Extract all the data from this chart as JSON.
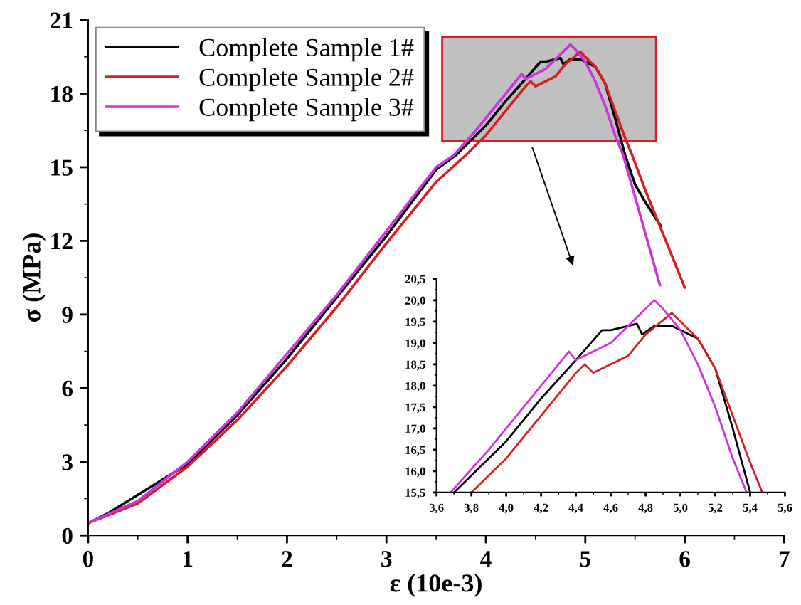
{
  "chart_data": [
    {
      "type": "line",
      "xlabel": "ε (10e-3)",
      "ylabel": "σ (MPa)",
      "xlim": [
        0,
        7
      ],
      "xticks": [
        0,
        1,
        2,
        3,
        4,
        5,
        6,
        7
      ],
      "ylim": [
        0,
        21
      ],
      "yticks": [
        0,
        3,
        6,
        9,
        12,
        15,
        18,
        21
      ],
      "grid": false,
      "legend": "top left",
      "marker": "none",
      "line_style": "solid",
      "series": [
        {
          "name": "Complete Sample 1#",
          "color": "#000000",
          "x": [
            0,
            0.2,
            1,
            1.5,
            2,
            2.5,
            3,
            3.5,
            3.7,
            3.8,
            4.0,
            4.2,
            4.4,
            4.55,
            4.6,
            4.75,
            4.78,
            4.85,
            4.95,
            5.05,
            5.1,
            5.2,
            5.3,
            5.4,
            5.5,
            5.6,
            5.76
          ],
          "values": [
            0.5,
            0.9,
            2.9,
            4.9,
            7.2,
            9.7,
            12.2,
            14.9,
            15.5,
            15.9,
            16.7,
            17.7,
            18.6,
            19.3,
            19.3,
            19.45,
            19.2,
            19.4,
            19.4,
            19.2,
            19.1,
            18.4,
            17.0,
            15.5,
            14.3,
            13.6,
            12.6
          ]
        },
        {
          "name": "Complete Sample 2#",
          "color": "#d42020",
          "x": [
            0,
            0.5,
            1,
            1.5,
            2,
            2.5,
            3,
            3.5,
            3.8,
            4.0,
            4.2,
            4.4,
            4.45,
            4.5,
            4.6,
            4.7,
            4.8,
            4.95,
            5.0,
            5.1,
            5.2,
            5.3,
            5.4,
            5.47,
            5.6,
            5.8,
            6.0
          ],
          "values": [
            0.5,
            1.3,
            2.8,
            4.7,
            6.9,
            9.3,
            11.9,
            14.4,
            15.5,
            16.3,
            17.3,
            18.3,
            18.5,
            18.3,
            18.5,
            18.7,
            19.2,
            19.7,
            19.5,
            19.1,
            18.4,
            17.3,
            16.2,
            15.5,
            14.1,
            12.1,
            10.1
          ]
        },
        {
          "name": "Complete Sample 3#",
          "color": "#cc33dd",
          "x": [
            0,
            0.5,
            1,
            1.5,
            2,
            2.5,
            3,
            3.5,
            3.68,
            3.9,
            4.1,
            4.3,
            4.36,
            4.4,
            4.6,
            4.8,
            4.85,
            4.9,
            5.0,
            5.1,
            5.2,
            5.3,
            5.38,
            5.5,
            5.75
          ],
          "values": [
            0.5,
            1.4,
            3.0,
            5.0,
            7.4,
            9.8,
            12.4,
            15.0,
            15.5,
            16.5,
            17.5,
            18.5,
            18.8,
            18.6,
            19.0,
            19.8,
            20.0,
            19.8,
            19.3,
            18.5,
            17.5,
            16.3,
            15.5,
            13.8,
            10.2
          ]
        }
      ]
    },
    {
      "type": "line",
      "xlim": [
        3.6,
        5.6
      ],
      "xticks": [
        {
          "value": 3.6,
          "label": "3,6"
        },
        {
          "value": 3.8,
          "label": "3,8"
        },
        {
          "value": 4.0,
          "label": "4,0"
        },
        {
          "value": 4.2,
          "label": "4,2"
        },
        {
          "value": 4.4,
          "label": "4,4"
        },
        {
          "value": 4.6,
          "label": "4,6"
        },
        {
          "value": 4.8,
          "label": "4,8"
        },
        {
          "value": 5.0,
          "label": "5,0"
        },
        {
          "value": 5.2,
          "label": "5,2"
        },
        {
          "value": 5.4,
          "label": "5,4"
        },
        {
          "value": 5.6,
          "label": "5,6"
        }
      ],
      "ylim": [
        15.5,
        20.5
      ],
      "yticks": [
        {
          "value": 15.5,
          "label": "15,5"
        },
        {
          "value": 16.0,
          "label": "16,0"
        },
        {
          "value": 16.5,
          "label": "16,5"
        },
        {
          "value": 17.0,
          "label": "17,0"
        },
        {
          "value": 17.5,
          "label": "17,5"
        },
        {
          "value": 18.0,
          "label": "18,0"
        },
        {
          "value": 18.5,
          "label": "18,5"
        },
        {
          "value": 19.0,
          "label": "19,0"
        },
        {
          "value": 19.5,
          "label": "19,5"
        },
        {
          "value": 20.0,
          "label": "20,0"
        },
        {
          "value": 20.5,
          "label": "20,5"
        }
      ],
      "grid": false,
      "marker": "none",
      "line_style": "solid",
      "series": [
        {
          "color": "#000000",
          "x": [
            3.7,
            3.8,
            4.0,
            4.2,
            4.4,
            4.55,
            4.6,
            4.75,
            4.78,
            4.85,
            4.95,
            5.05,
            5.1,
            5.2,
            5.3,
            5.4
          ],
          "values": [
            15.5,
            15.9,
            16.7,
            17.7,
            18.6,
            19.3,
            19.3,
            19.45,
            19.2,
            19.4,
            19.4,
            19.2,
            19.1,
            18.4,
            17.0,
            15.5
          ]
        },
        {
          "color": "#d42020",
          "x": [
            3.8,
            4.0,
            4.2,
            4.4,
            4.45,
            4.5,
            4.6,
            4.7,
            4.8,
            4.95,
            5.0,
            5.1,
            5.2,
            5.3,
            5.4,
            5.47
          ],
          "values": [
            15.5,
            16.3,
            17.3,
            18.3,
            18.5,
            18.3,
            18.5,
            18.7,
            19.2,
            19.7,
            19.5,
            19.1,
            18.4,
            17.3,
            16.2,
            15.5
          ]
        },
        {
          "color": "#cc33dd",
          "x": [
            3.68,
            3.9,
            4.1,
            4.3,
            4.36,
            4.4,
            4.6,
            4.8,
            4.85,
            4.9,
            5.0,
            5.1,
            5.2,
            5.3,
            5.38
          ],
          "values": [
            15.5,
            16.5,
            17.5,
            18.5,
            18.8,
            18.6,
            19.0,
            19.8,
            20.0,
            19.8,
            19.3,
            18.5,
            17.5,
            16.3,
            15.5
          ]
        }
      ]
    }
  ]
}
